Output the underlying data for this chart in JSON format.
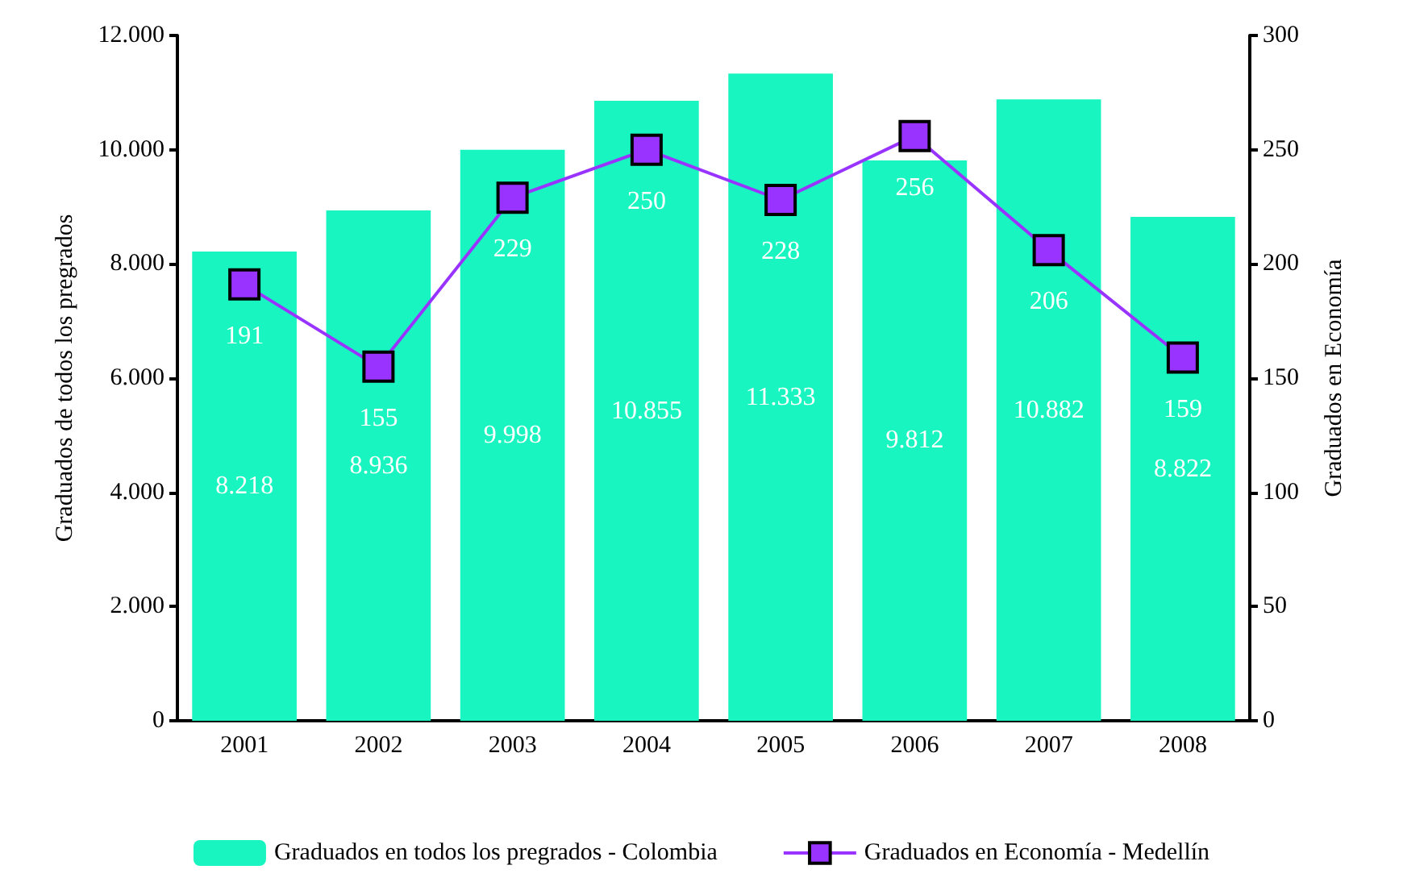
{
  "chart_data": {
    "type": "bar",
    "categories": [
      "2001",
      "2002",
      "2003",
      "2004",
      "2005",
      "2006",
      "2007",
      "2008"
    ],
    "ylabel": "Graduados de todos los pregrados",
    "y2label": "Graduados en Economía",
    "ylim": [
      0,
      12000
    ],
    "yticks": [
      {
        "value": 0,
        "label": "0"
      },
      {
        "value": 2000,
        "label": "2.000"
      },
      {
        "value": 4000,
        "label": "4.000"
      },
      {
        "value": 6000,
        "label": "6.000"
      },
      {
        "value": 8000,
        "label": "8.000"
      },
      {
        "value": 10000,
        "label": "10.000"
      },
      {
        "value": 12000,
        "label": "12.000"
      }
    ],
    "y2lim": [
      0,
      300
    ],
    "y2ticks": [
      0,
      50,
      100,
      150,
      200,
      250,
      300
    ],
    "series": [
      {
        "name": "Graduados en todos los pregrados - Colombia",
        "color": "#19f5c0",
        "values": [
          8218,
          8936,
          9998,
          10855,
          11333,
          9812,
          10882,
          8822
        ],
        "value_labels": [
          "8.218",
          "8.936",
          "9.998",
          "10.855",
          "11.333",
          "9.812",
          "10.882",
          "8.822"
        ]
      },
      {
        "name": "Graduados en Economía - Medellín",
        "type": "line",
        "axis": "y2",
        "color": "#9933ff",
        "marker": "square",
        "values": [
          191,
          155,
          229,
          250,
          228,
          256,
          206,
          159
        ],
        "value_labels": [
          "191",
          "155",
          "229",
          "250",
          "228",
          "256",
          "206",
          "159"
        ]
      }
    ],
    "grid": false,
    "legend": "bottom"
  }
}
